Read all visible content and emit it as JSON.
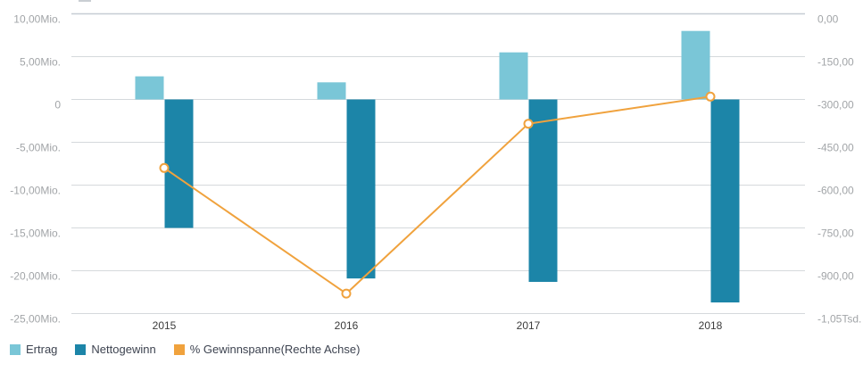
{
  "chart_data": {
    "type": "combo",
    "categories": [
      "2015",
      "2016",
      "2017",
      "2018"
    ],
    "series": [
      {
        "name": "Ertrag",
        "type": "bar",
        "axis": "left",
        "color": "#7ac6d7",
        "values": [
          2.7,
          2.0,
          5.5,
          8.0
        ]
      },
      {
        "name": "Nettogewinn",
        "type": "bar",
        "axis": "left",
        "color": "#1c85a8",
        "values": [
          -15.0,
          -20.9,
          -21.3,
          -23.7
        ]
      },
      {
        "name": "% Gewinnspanne(Rechte Achse)",
        "type": "line",
        "axis": "right",
        "color": "#f0a23d",
        "values": [
          -540,
          -980,
          -385,
          -290
        ]
      }
    ],
    "left_axis": {
      "unit": "Mio.",
      "max": 10,
      "min": -25,
      "ticks": [
        {
          "label": "10,00Mio.",
          "value": 10
        },
        {
          "label": "5,00Mio.",
          "value": 5
        },
        {
          "label": "0",
          "value": 0
        },
        {
          "label": "-5,00Mio.",
          "value": -5
        },
        {
          "label": "-10,00Mio.",
          "value": -10
        },
        {
          "label": "-15,00Mio.",
          "value": -15
        },
        {
          "label": "-20,00Mio.",
          "value": -20
        },
        {
          "label": "-25,00Mio.",
          "value": -25
        }
      ]
    },
    "right_axis": {
      "max": 0,
      "min": -1050,
      "ticks": [
        {
          "label": "0,00",
          "value": 0
        },
        {
          "label": "-150,00",
          "value": -150
        },
        {
          "label": "-300,00",
          "value": -300
        },
        {
          "label": "-450,00",
          "value": -450
        },
        {
          "label": "-600,00",
          "value": -600
        },
        {
          "label": "-750,00",
          "value": -750
        },
        {
          "label": "-900,00",
          "value": -900
        },
        {
          "label": "-1,05Tsd.",
          "value": -1050
        }
      ]
    },
    "grid": "on",
    "legend_position": "bottom-left",
    "colors": {
      "grid": "#d5d9dc",
      "grid_strong": "#c6cdd4",
      "marker_fill": "#ffffff"
    }
  },
  "legend": {
    "items": [
      {
        "label": "Ertrag",
        "color": "#7ac6d7"
      },
      {
        "label": "Nettogewinn",
        "color": "#1c85a8"
      },
      {
        "label": "% Gewinnspanne(Rechte Achse)",
        "color": "#f0a23d"
      }
    ]
  }
}
